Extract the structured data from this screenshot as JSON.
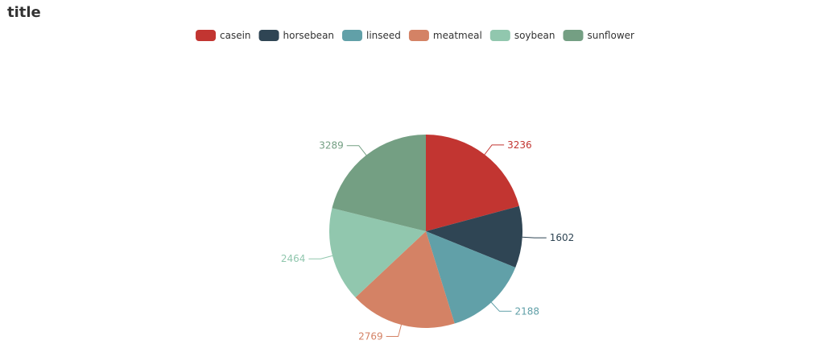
{
  "chart_data": {
    "type": "pie",
    "title": "title",
    "legend_position": "top-center",
    "categories": [
      "casein",
      "horsebean",
      "linseed",
      "meatmeal",
      "soybean",
      "sunflower"
    ],
    "values": [
      3236,
      1602,
      2188,
      2769,
      2464,
      3289
    ],
    "colors": [
      "#c23531",
      "#2f4554",
      "#61a0a8",
      "#d48265",
      "#91c7ae",
      "#749f83"
    ],
    "data_labels": [
      "3236",
      "1602",
      "2188",
      "2769",
      "2464",
      "3289"
    ]
  }
}
